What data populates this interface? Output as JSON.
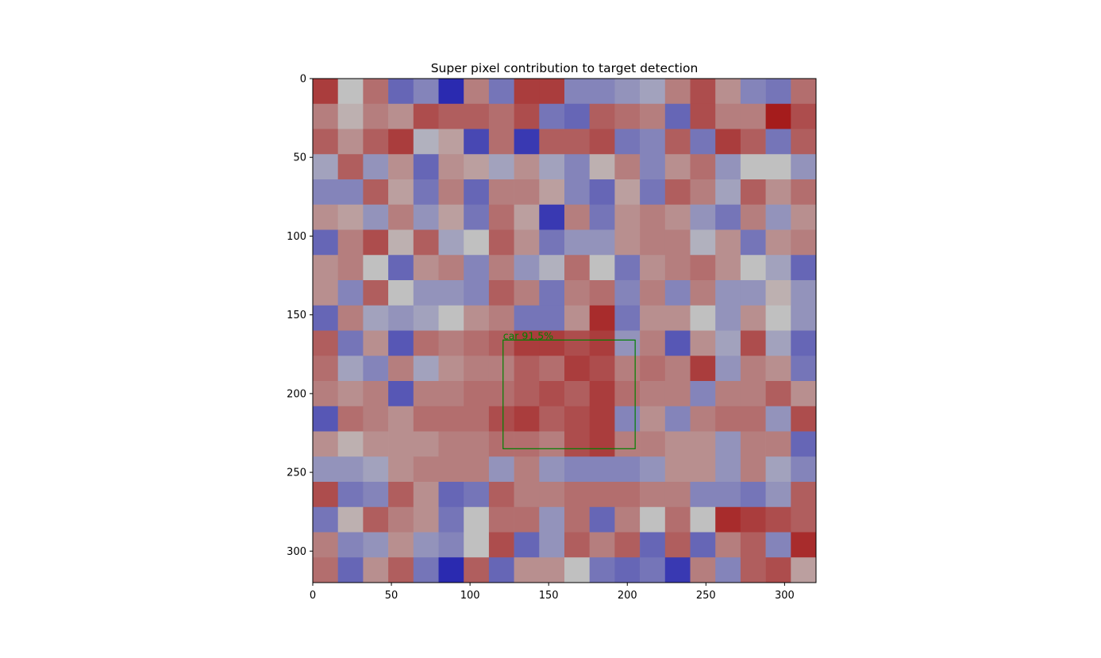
{
  "chart_data": {
    "type": "heatmap",
    "title": "Super pixel contribution to target detection",
    "xlabel": "",
    "ylabel": "",
    "xlim": [
      0,
      320
    ],
    "ylim": [
      320,
      0
    ],
    "xticks": [
      0,
      50,
      100,
      150,
      200,
      250,
      300
    ],
    "yticks": [
      0,
      50,
      100,
      150,
      200,
      250,
      300
    ],
    "grid": false,
    "colormap": {
      "negative": "#2a2ab0",
      "neutral": "#c0c0c0",
      "positive": "#a51c1c"
    },
    "cell_size": 16,
    "rows": 20,
    "cols": 20,
    "values": [
      [
        0.8,
        0.0,
        0.5,
        -0.6,
        -0.4,
        -1.0,
        0.4,
        -0.5,
        0.8,
        0.8,
        -0.4,
        -0.4,
        -0.3,
        -0.2,
        0.4,
        0.7,
        0.3,
        -0.4,
        -0.5,
        0.5
      ],
      [
        0.4,
        0.1,
        0.4,
        0.3,
        0.7,
        0.6,
        0.6,
        0.5,
        0.7,
        -0.5,
        -0.6,
        0.6,
        0.5,
        0.4,
        -0.6,
        0.7,
        0.4,
        0.4,
        1.0,
        0.7
      ],
      [
        0.6,
        0.3,
        0.6,
        0.8,
        -0.1,
        0.2,
        -0.8,
        0.5,
        -0.9,
        0.6,
        0.6,
        0.7,
        -0.5,
        -0.4,
        0.6,
        -0.5,
        0.8,
        0.6,
        -0.5,
        0.6
      ],
      [
        -0.2,
        0.6,
        -0.3,
        0.3,
        -0.6,
        0.3,
        0.2,
        -0.2,
        0.3,
        -0.2,
        -0.4,
        0.1,
        0.4,
        -0.4,
        0.3,
        0.5,
        -0.3,
        0.0,
        0.0,
        -0.3
      ],
      [
        -0.4,
        -0.4,
        0.6,
        0.2,
        -0.5,
        0.4,
        -0.6,
        0.4,
        0.4,
        0.2,
        -0.4,
        -0.6,
        0.2,
        -0.5,
        0.6,
        0.4,
        -0.2,
        0.6,
        0.3,
        0.5
      ],
      [
        0.3,
        0.2,
        -0.3,
        0.4,
        -0.3,
        0.2,
        -0.5,
        0.5,
        0.2,
        -0.9,
        0.4,
        -0.5,
        0.3,
        0.4,
        0.3,
        -0.3,
        -0.5,
        0.4,
        -0.3,
        0.3
      ],
      [
        -0.6,
        0.4,
        0.7,
        0.1,
        0.6,
        -0.2,
        0.0,
        0.6,
        0.3,
        -0.5,
        -0.3,
        -0.3,
        0.3,
        0.4,
        0.4,
        -0.1,
        0.3,
        -0.5,
        0.3,
        0.4
      ],
      [
        0.3,
        0.4,
        0.0,
        -0.6,
        0.3,
        0.4,
        -0.4,
        0.4,
        -0.3,
        -0.1,
        0.5,
        0.0,
        -0.5,
        0.3,
        0.4,
        0.5,
        0.3,
        0.0,
        -0.2,
        -0.6
      ],
      [
        0.3,
        -0.4,
        0.6,
        0.0,
        -0.3,
        -0.3,
        -0.4,
        0.6,
        0.4,
        -0.5,
        0.4,
        0.5,
        -0.4,
        0.4,
        -0.4,
        0.4,
        -0.3,
        -0.3,
        0.1,
        -0.3
      ],
      [
        -0.6,
        0.4,
        -0.2,
        -0.3,
        -0.2,
        0.0,
        0.3,
        0.4,
        -0.5,
        -0.5,
        0.3,
        0.9,
        -0.5,
        0.3,
        0.3,
        0.0,
        -0.3,
        0.3,
        0.0,
        -0.3
      ],
      [
        0.6,
        -0.5,
        0.3,
        -0.7,
        0.5,
        0.4,
        0.5,
        0.6,
        0.8,
        0.8,
        0.7,
        0.8,
        -0.3,
        0.4,
        -0.7,
        0.3,
        -0.2,
        0.7,
        -0.2,
        -0.6
      ],
      [
        0.5,
        -0.2,
        -0.4,
        0.4,
        -0.2,
        0.3,
        0.4,
        0.4,
        0.6,
        0.5,
        0.8,
        0.7,
        0.4,
        0.5,
        0.4,
        0.8,
        -0.3,
        0.4,
        0.3,
        -0.5
      ],
      [
        0.4,
        0.3,
        0.4,
        -0.7,
        0.4,
        0.4,
        0.5,
        0.5,
        0.6,
        0.7,
        0.6,
        0.8,
        0.5,
        0.4,
        0.4,
        -0.4,
        0.4,
        0.4,
        0.6,
        0.3
      ],
      [
        -0.7,
        0.5,
        0.4,
        0.3,
        0.5,
        0.5,
        0.5,
        0.7,
        0.8,
        0.6,
        0.7,
        0.8,
        -0.4,
        0.3,
        -0.4,
        0.4,
        0.5,
        0.5,
        -0.3,
        0.7
      ],
      [
        0.3,
        0.1,
        0.3,
        0.3,
        0.3,
        0.4,
        0.4,
        0.5,
        0.5,
        0.4,
        0.7,
        0.8,
        0.4,
        0.4,
        0.3,
        0.3,
        -0.3,
        0.4,
        0.4,
        -0.6
      ],
      [
        -0.3,
        -0.3,
        -0.2,
        0.3,
        0.4,
        0.4,
        0.4,
        -0.3,
        0.4,
        -0.3,
        -0.4,
        -0.4,
        -0.4,
        -0.3,
        0.3,
        0.3,
        -0.3,
        0.4,
        -0.2,
        -0.4
      ],
      [
        0.7,
        -0.5,
        -0.4,
        0.6,
        0.3,
        -0.6,
        -0.5,
        0.6,
        0.4,
        0.4,
        0.5,
        0.5,
        0.5,
        0.4,
        0.4,
        -0.4,
        -0.4,
        -0.5,
        -0.3,
        0.6
      ],
      [
        -0.5,
        0.1,
        0.6,
        0.4,
        0.3,
        -0.5,
        0.0,
        0.5,
        0.5,
        -0.3,
        0.5,
        -0.6,
        0.4,
        0.0,
        0.5,
        0.0,
        0.9,
        0.8,
        0.7,
        0.6
      ],
      [
        0.4,
        -0.4,
        -0.3,
        0.3,
        -0.3,
        -0.4,
        0.0,
        0.7,
        -0.6,
        -0.3,
        0.6,
        0.4,
        0.6,
        -0.6,
        0.6,
        -0.6,
        0.4,
        0.6,
        -0.4,
        0.9
      ],
      [
        0.5,
        -0.6,
        0.3,
        0.6,
        -0.5,
        -1.0,
        0.6,
        -0.6,
        0.3,
        0.3,
        0.0,
        -0.5,
        -0.6,
        -0.5,
        -0.9,
        0.4,
        -0.4,
        0.6,
        0.7,
        0.2
      ]
    ],
    "annotations": [
      {
        "type": "bounding_box",
        "label": "car 91.5%",
        "color": "#008000",
        "x_range": [
          121,
          205
        ],
        "y_range": [
          166,
          235
        ]
      }
    ]
  }
}
